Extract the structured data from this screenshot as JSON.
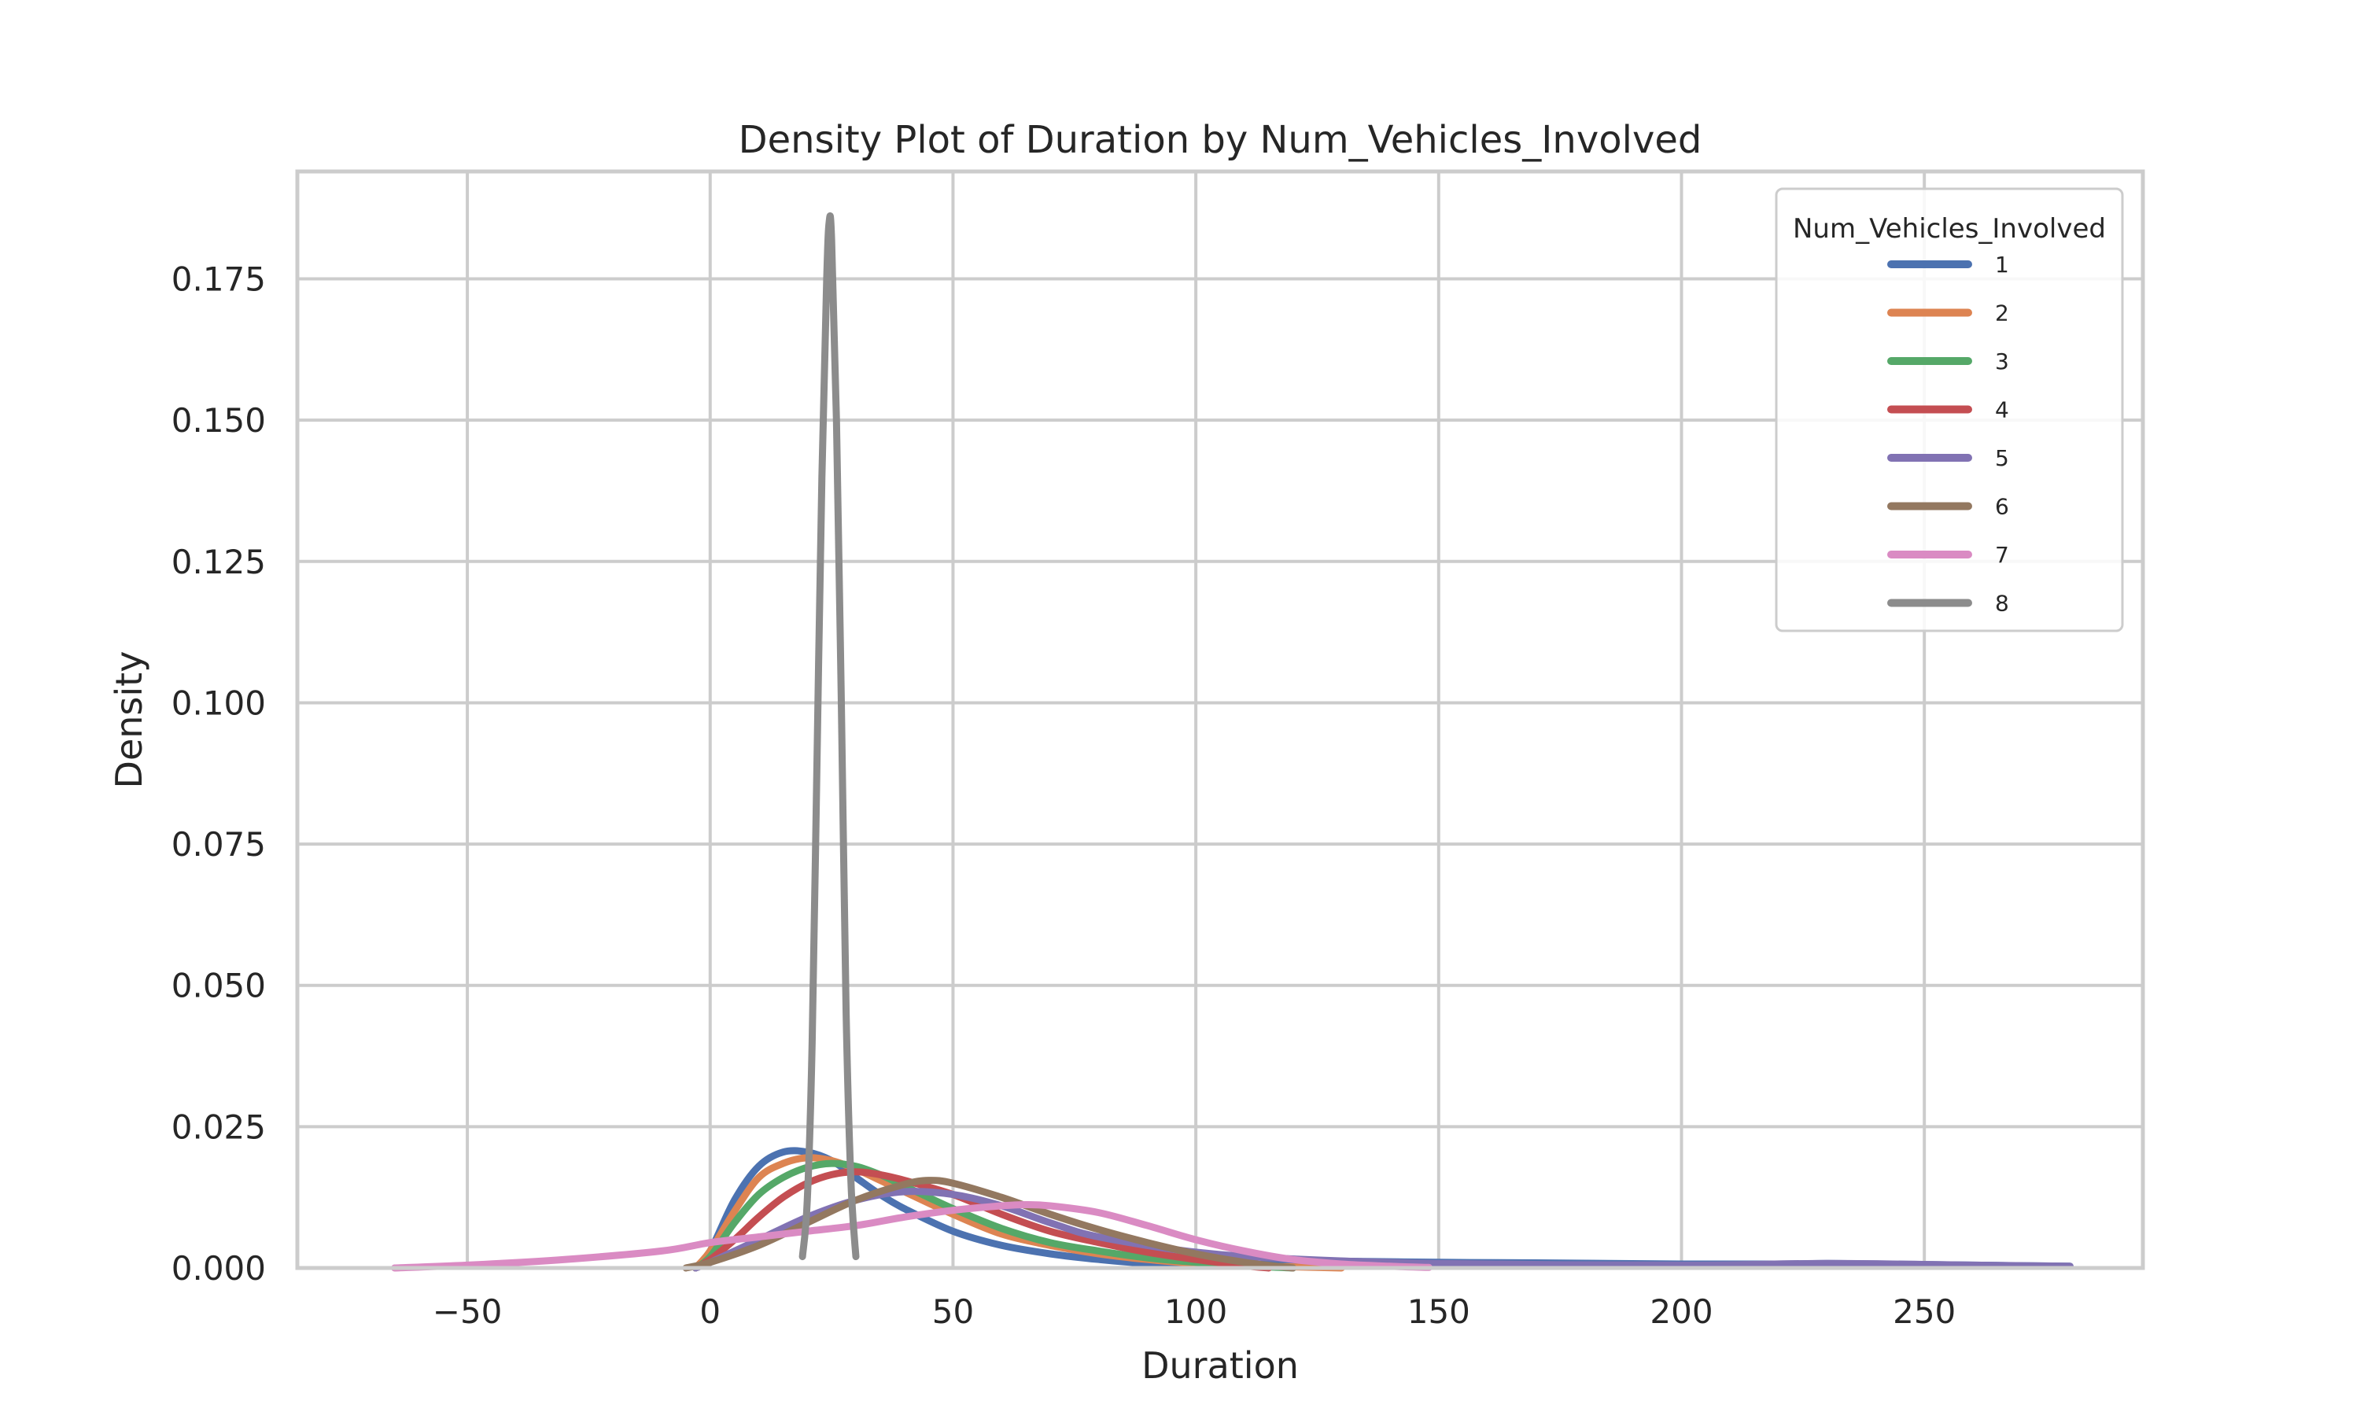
{
  "chart_data": {
    "type": "line",
    "title": "Density Plot of Duration by Num_Vehicles_Involved",
    "xlabel": "Duration",
    "ylabel": "Density",
    "xlim": [
      -85,
      295
    ],
    "ylim": [
      0,
      0.194
    ],
    "xticks": [
      -50,
      0,
      50,
      100,
      150,
      200,
      250
    ],
    "xtick_labels": [
      "−50",
      "0",
      "50",
      "100",
      "150",
      "200",
      "250"
    ],
    "yticks": [
      0,
      0.025,
      0.05,
      0.075,
      0.1,
      0.125,
      0.15,
      0.175
    ],
    "ytick_labels": [
      "0.000",
      "0.025",
      "0.050",
      "0.075",
      "0.100",
      "0.125",
      "0.150",
      "0.175"
    ],
    "grid": true,
    "legend": {
      "title": "Num_Vehicles_Involved",
      "position": "top-right"
    },
    "series": [
      {
        "name": "1",
        "color": "#4c72b0",
        "x": [
          -3,
          0,
          5,
          10,
          15,
          20,
          25,
          30,
          35,
          40,
          50,
          60,
          70,
          80,
          90,
          100,
          110,
          120,
          130,
          150,
          170,
          200,
          220,
          230,
          240,
          260,
          280
        ],
        "y": [
          0,
          0.003,
          0.012,
          0.018,
          0.0205,
          0.0205,
          0.019,
          0.016,
          0.013,
          0.0105,
          0.0065,
          0.004,
          0.0025,
          0.0015,
          0.0008,
          0.0005,
          0.0004,
          0.0013,
          0.0012,
          0.001,
          0.0009,
          0.0007,
          0.0007,
          0.0008,
          0.0007,
          0.0005,
          0.0003
        ]
      },
      {
        "name": "2",
        "color": "#dd8452",
        "x": [
          -3,
          0,
          5,
          10,
          15,
          20,
          25,
          30,
          35,
          40,
          50,
          60,
          70,
          80,
          90,
          100,
          110,
          120,
          130
        ],
        "y": [
          0,
          0.003,
          0.01,
          0.016,
          0.0185,
          0.0195,
          0.019,
          0.0175,
          0.0155,
          0.0135,
          0.0095,
          0.006,
          0.004,
          0.0025,
          0.0015,
          0.0008,
          0.0004,
          0.0002,
          0
        ]
      },
      {
        "name": "3",
        "color": "#55a868",
        "x": [
          -3,
          0,
          5,
          10,
          15,
          20,
          25,
          30,
          35,
          40,
          50,
          60,
          70,
          80,
          90,
          100,
          110,
          120
        ],
        "y": [
          0,
          0.002,
          0.008,
          0.013,
          0.016,
          0.0178,
          0.0185,
          0.018,
          0.0165,
          0.0145,
          0.0105,
          0.007,
          0.0045,
          0.003,
          0.0018,
          0.001,
          0.0004,
          0
        ]
      },
      {
        "name": "4",
        "color": "#c44e52",
        "x": [
          -3,
          0,
          5,
          10,
          15,
          20,
          25,
          30,
          35,
          40,
          50,
          60,
          70,
          80,
          90,
          100,
          110,
          115
        ],
        "y": [
          0,
          0.0015,
          0.005,
          0.009,
          0.0125,
          0.015,
          0.0165,
          0.017,
          0.0165,
          0.0155,
          0.013,
          0.0095,
          0.0065,
          0.0045,
          0.0028,
          0.0015,
          0.0004,
          0
        ]
      },
      {
        "name": "5",
        "color": "#8172b3",
        "x": [
          -3,
          0,
          10,
          20,
          30,
          40,
          50,
          60,
          70,
          80,
          100,
          120,
          150,
          200,
          230,
          260,
          280
        ],
        "y": [
          0,
          0.001,
          0.005,
          0.009,
          0.012,
          0.0135,
          0.013,
          0.011,
          0.008,
          0.0055,
          0.0028,
          0.0016,
          0.0008,
          0.0005,
          0.0008,
          0.0005,
          0.0003
        ]
      },
      {
        "name": "6",
        "color": "#937860",
        "x": [
          -5,
          0,
          10,
          20,
          30,
          40,
          45,
          50,
          60,
          70,
          80,
          90,
          100,
          110,
          120
        ],
        "y": [
          0,
          0.001,
          0.004,
          0.008,
          0.012,
          0.0148,
          0.0155,
          0.015,
          0.0125,
          0.0095,
          0.0068,
          0.0045,
          0.0025,
          0.001,
          0
        ]
      },
      {
        "name": "7",
        "color": "#da8bc3",
        "x": [
          -65,
          -50,
          -30,
          -10,
          0,
          10,
          20,
          30,
          40,
          50,
          60,
          65,
          70,
          80,
          90,
          100,
          110,
          120,
          130,
          140,
          148
        ],
        "y": [
          0,
          0.0005,
          0.0015,
          0.003,
          0.0045,
          0.0055,
          0.0065,
          0.0075,
          0.009,
          0.0102,
          0.011,
          0.0112,
          0.011,
          0.0098,
          0.0075,
          0.005,
          0.003,
          0.0015,
          0.0007,
          0.0003,
          0.0001
        ]
      },
      {
        "name": "8",
        "color": "#8c8c8c",
        "x": [
          19,
          20,
          21,
          22,
          23,
          24,
          24.5,
          25,
          26,
          27,
          28,
          29,
          30
        ],
        "y": [
          0.002,
          0.012,
          0.04,
          0.09,
          0.14,
          0.175,
          0.185,
          0.182,
          0.15,
          0.1,
          0.045,
          0.015,
          0.002
        ]
      }
    ]
  }
}
